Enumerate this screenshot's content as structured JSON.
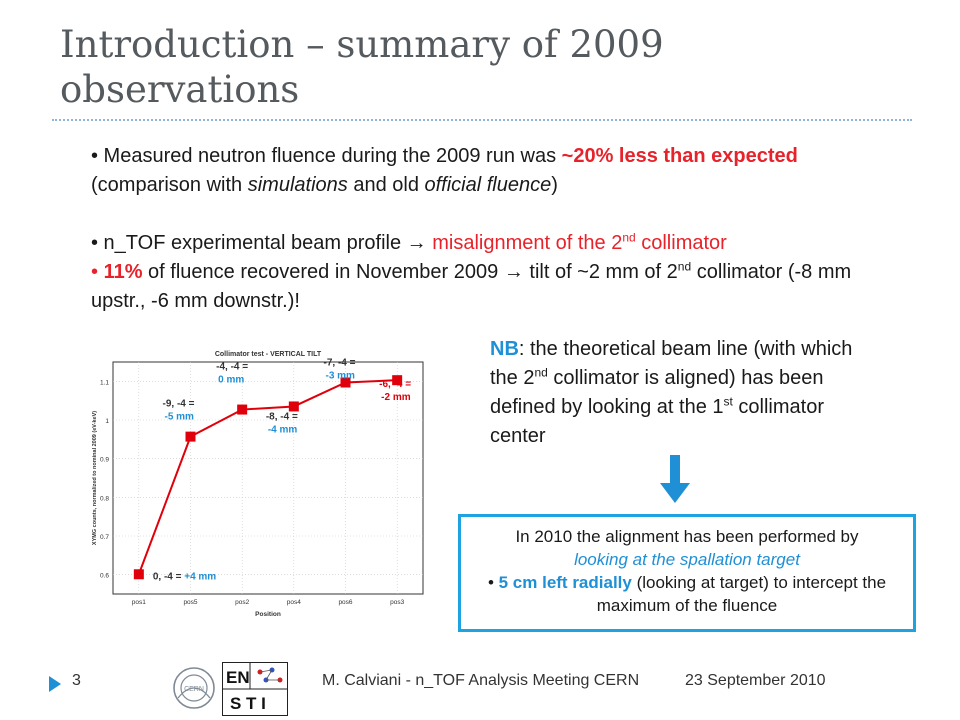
{
  "title": "Introduction – summary of 2009 observations",
  "bullets": {
    "b1": {
      "prefix": "• Measured neutron fluence during the 2009 run was ",
      "red_bold": "~20% less than expected",
      "mid": " (comparison with ",
      "it1": "simulations",
      "and": " and old ",
      "it2": "official fluence",
      "end": ")"
    },
    "b2": {
      "prefix": "• n_TOF experimental beam profile ",
      "arrow": "→",
      "red": " misalignment of the 2",
      "sup": "nd",
      "red_end": " collimator"
    },
    "b3": {
      "bullet": "• ",
      "red_bold": "11%",
      "text1": " of fluence recovered in November 2009 ",
      "arrow": "→",
      "text2": " tilt of ~2 mm of 2",
      "sup": "nd",
      "text3": " collimator (-8 mm upstr., -6 mm downstr.)!"
    }
  },
  "nb": {
    "label": "NB",
    "t1": ": the theoretical beam line (with which the 2",
    "sup1": "nd",
    "t2": " collimator is aligned) has been defined by looking at the 1",
    "sup2": "st",
    "t3": " collimator center"
  },
  "box": {
    "line1": "In 2010 the alignment has been performed by",
    "line2": "looking at the spallation target",
    "bullet": "• ",
    "bold_blue": "5 cm left radially",
    "rest": " (looking at target) to intercept the maximum of the fluence"
  },
  "chart_data": {
    "type": "line",
    "title": "Collimator test - VERTICAL TILT",
    "xlabel": "Position",
    "ylabel": "XYMG counts, normalized to nominal 2009 (eV-keV)",
    "categories": [
      "pos1",
      "pos5",
      "pos2",
      "pos4",
      "pos6",
      "pos3"
    ],
    "values": [
      0.601,
      0.957,
      1.027,
      1.035,
      1.097,
      1.103
    ],
    "ylim": [
      0.55,
      1.15
    ],
    "yticks": [
      "0.6",
      "0.7",
      "0.8",
      "0.9",
      "1",
      "1.1"
    ],
    "labels": [
      {
        "coord": "0, -4 = ",
        "shift": "+4 mm"
      },
      {
        "coord": "-9, -4 =",
        "shift": "-5 mm"
      },
      {
        "coord": "-4, -4 =",
        "shift": "0 mm"
      },
      {
        "coord": "-8, -4 =",
        "shift": "-4 mm"
      },
      {
        "coord": "-7, -4 =",
        "shift": "-3 mm"
      },
      {
        "coord": "-6, -4 =",
        "shift": "-2 mm"
      }
    ],
    "series_color": "#e0000b",
    "label_color": "#1f8fd6",
    "grid": true
  },
  "footer": {
    "page": "3",
    "text": "M. Calviani - n_TOF Analysis Meeting CERN",
    "date": "23 September 2010",
    "logo_cern": "CERN",
    "logo_en": "EN",
    "logo_sti": "S T I"
  },
  "colors": {
    "accent_red": "#e8222a",
    "accent_blue": "#1f8fd6",
    "box_border": "#1fa3e0",
    "title": "#555a5e"
  }
}
